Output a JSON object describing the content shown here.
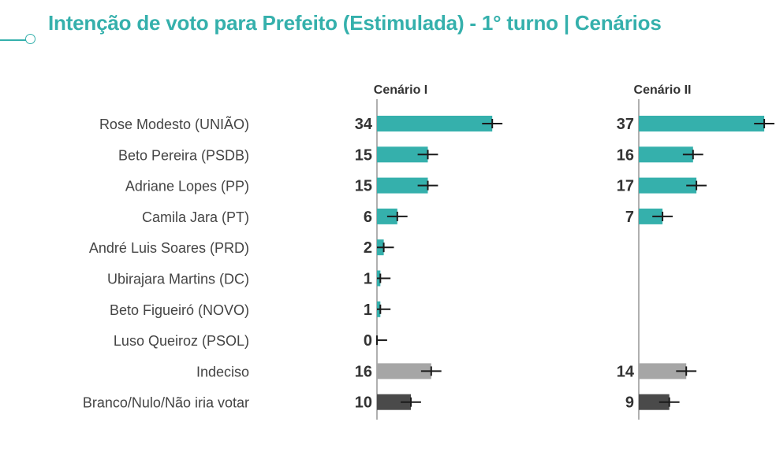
{
  "title": "Intenção de voto para Prefeito (Estimulada) - 1° turno | Cenários",
  "colors": {
    "title": "#35b0ac",
    "candidate_bar": "#35b0ac",
    "indeciso_bar": "#a6a6a6",
    "branco_bar": "#4a4a4a",
    "error_bar": "#1a1a1a",
    "axis": "#b0b0b0"
  },
  "chart_data": [
    {
      "type": "bar",
      "orientation": "horizontal",
      "title": "Cenário I",
      "categories": [
        "Rose Modesto (UNIÃO)",
        "Beto Pereira (PSDB)",
        "Adriane Lopes (PP)",
        "Camila Jara (PT)",
        "André Luis Soares (PRD)",
        "Ubirajara Martins (DC)",
        "Beto Figueiró (NOVO)",
        "Luso Queiroz (PSOL)",
        "Indeciso",
        "Branco/Nulo/Não iria votar"
      ],
      "values": [
        34,
        15,
        15,
        6,
        2,
        1,
        1,
        0,
        16,
        10
      ],
      "error_margin": 3,
      "grid": false
    },
    {
      "type": "bar",
      "orientation": "horizontal",
      "title": "Cenário II",
      "categories": [
        "Rose Modesto (UNIÃO)",
        "Beto Pereira (PSDB)",
        "Adriane Lopes (PP)",
        "Camila Jara (PT)",
        "André Luis Soares (PRD)",
        "Ubirajara Martins (DC)",
        "Beto Figueiró (NOVO)",
        "Luso Queiroz (PSOL)",
        "Indeciso",
        "Branco/Nulo/Não iria votar"
      ],
      "values": [
        37,
        16,
        17,
        7,
        null,
        null,
        null,
        null,
        14,
        9
      ],
      "error_margin": 3,
      "grid": false
    }
  ]
}
